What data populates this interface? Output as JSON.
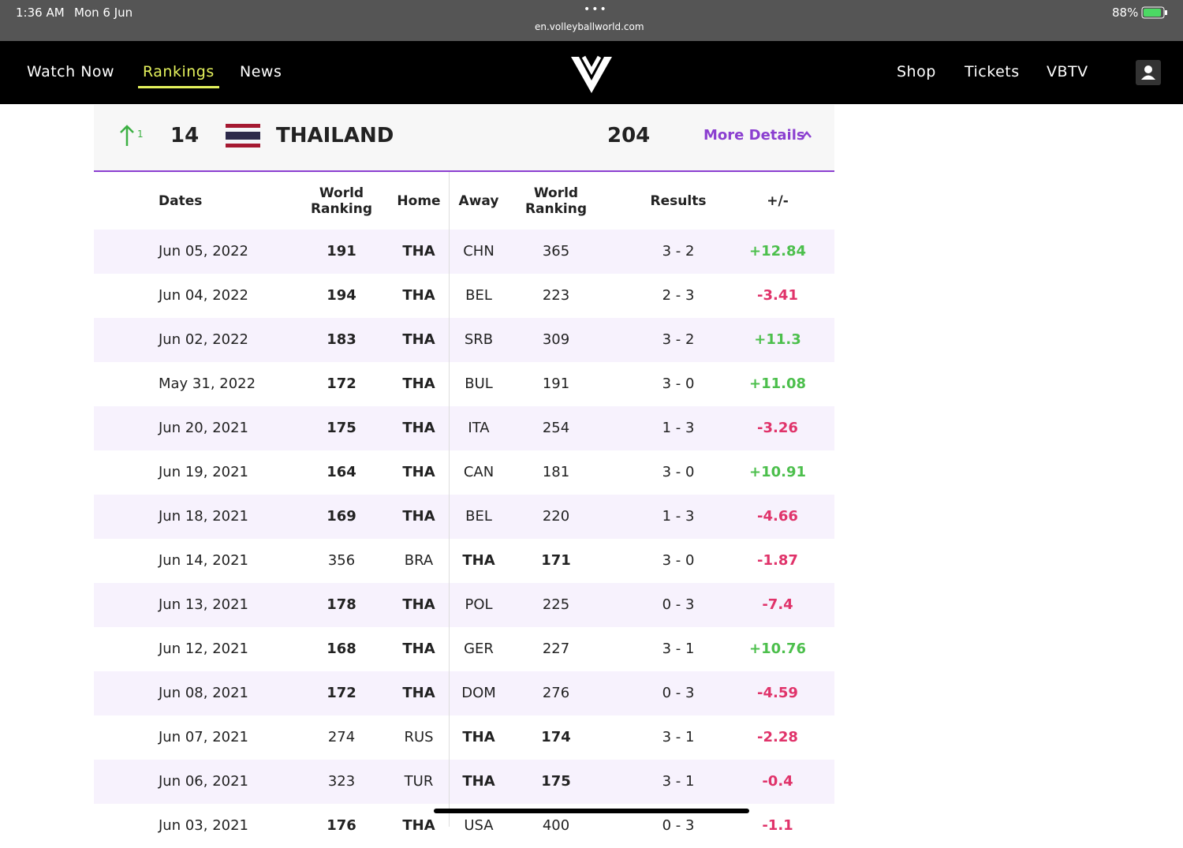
{
  "status_bar": {
    "time": "1:36 AM",
    "date": "Mon 6 Jun",
    "url": "en.volleyballworld.com",
    "battery": "88%"
  },
  "nav": {
    "left": [
      "Watch Now",
      "Rankings",
      "News"
    ],
    "right": [
      "Shop",
      "Tickets",
      "VBTV"
    ]
  },
  "team": {
    "movement": "1",
    "rank": "14",
    "name": "THAILAND",
    "points": "204",
    "details": "More Details"
  },
  "table": {
    "headers": [
      "Dates",
      "World Ranking",
      "Home",
      "Away",
      "World Ranking",
      "Results",
      "+/-"
    ],
    "rows": [
      [
        "Jun 05, 2022",
        "191",
        "THA",
        "CHN",
        "365",
        "3 - 2",
        "+12.84"
      ],
      [
        "Jun 04, 2022",
        "194",
        "THA",
        "BEL",
        "223",
        "2 - 3",
        "-3.41"
      ],
      [
        "Jun 02, 2022",
        "183",
        "THA",
        "SRB",
        "309",
        "3 - 2",
        "+11.3"
      ],
      [
        "May 31, 2022",
        "172",
        "THA",
        "BUL",
        "191",
        "3 - 0",
        "+11.08"
      ],
      [
        "Jun 20, 2021",
        "175",
        "THA",
        "ITA",
        "254",
        "1 - 3",
        "-3.26"
      ],
      [
        "Jun 19, 2021",
        "164",
        "THA",
        "CAN",
        "181",
        "3 - 0",
        "+10.91"
      ],
      [
        "Jun 18, 2021",
        "169",
        "THA",
        "BEL",
        "220",
        "1 - 3",
        "-4.66"
      ],
      [
        "Jun 14, 2021",
        "356",
        "BRA",
        "THA",
        "171",
        "3 - 0",
        "-1.87"
      ],
      [
        "Jun 13, 2021",
        "178",
        "THA",
        "POL",
        "225",
        "0 - 3",
        "-7.4"
      ],
      [
        "Jun 12, 2021",
        "168",
        "THA",
        "GER",
        "227",
        "3 - 1",
        "+10.76"
      ],
      [
        "Jun 08, 2021",
        "172",
        "THA",
        "DOM",
        "276",
        "0 - 3",
        "-4.59"
      ],
      [
        "Jun 07, 2021",
        "274",
        "RUS",
        "THA",
        "174",
        "3 - 1",
        "-2.28"
      ],
      [
        "Jun 06, 2021",
        "323",
        "TUR",
        "THA",
        "175",
        "3 - 1",
        "-0.4"
      ],
      [
        "Jun 03, 2021",
        "176",
        "THA",
        "USA",
        "400",
        "0 - 3",
        "-1.1"
      ]
    ]
  }
}
